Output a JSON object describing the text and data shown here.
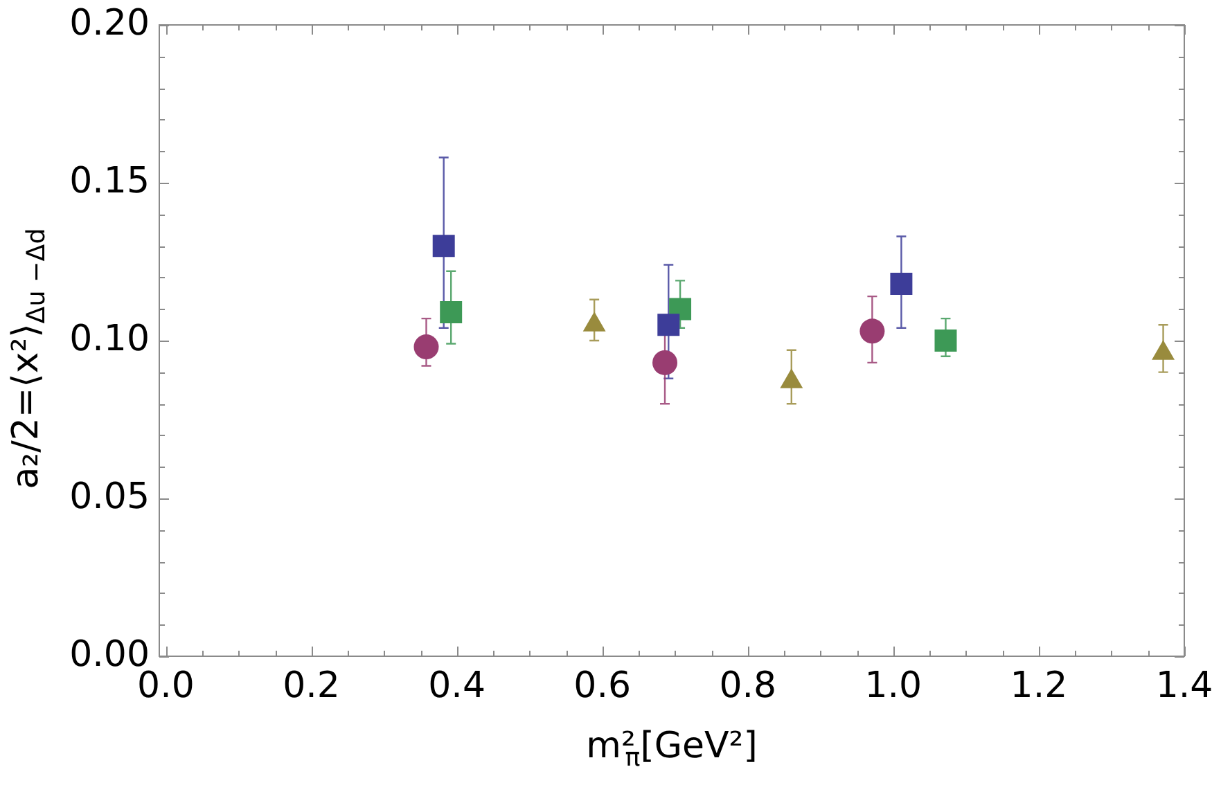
{
  "chart_data": {
    "type": "scatter",
    "xlabel": "m²$_{π}$[GeV²]",
    "ylabel": "a₂/2=⟨x²⟩$_{Δu −Δd}$",
    "xlim": [
      -0.009,
      1.4
    ],
    "ylim": [
      0,
      0.2
    ],
    "xticks": [
      {
        "value": 0,
        "label": "0.0"
      },
      {
        "value": 0.05,
        "label": null
      },
      {
        "value": 0.1,
        "label": null
      },
      {
        "value": 0.15,
        "label": null
      },
      0.2,
      {
        "value": 0.25,
        "label": null
      },
      {
        "value": 0.3,
        "label": null
      },
      {
        "value": 0.35,
        "label": null
      },
      0.4,
      {
        "value": 0.45,
        "label": null
      },
      {
        "value": 0.5,
        "label": null
      },
      {
        "value": 0.55,
        "label": null
      },
      0.6,
      {
        "value": 0.65,
        "label": null
      },
      {
        "value": 0.7,
        "label": null
      },
      {
        "value": 0.75,
        "label": null
      },
      0.8,
      {
        "value": 0.85,
        "label": null
      },
      {
        "value": 0.9,
        "label": null
      },
      {
        "value": 0.95,
        "label": null
      },
      {
        "value": 1,
        "label": "1.0"
      },
      {
        "value": 1.05,
        "label": null
      },
      {
        "value": 1.1,
        "label": null
      },
      {
        "value": 1.15,
        "label": null
      },
      1.2,
      {
        "value": 1.25,
        "label": null
      },
      {
        "value": 1.3,
        "label": null
      },
      {
        "value": 1.35,
        "label": null
      },
      1.4
    ],
    "yticks": [
      {
        "value": 0,
        "label": "0.00"
      },
      {
        "value": 0.01,
        "label": null
      },
      {
        "value": 0.02,
        "label": null
      },
      {
        "value": 0.03,
        "label": null
      },
      {
        "value": 0.04,
        "label": null
      },
      0.05,
      {
        "value": 0.06,
        "label": null
      },
      {
        "value": 0.07,
        "label": null
      },
      {
        "value": 0.08,
        "label": null
      },
      {
        "value": 0.09,
        "label": null
      },
      {
        "value": 0.1,
        "label": "0.10"
      },
      {
        "value": 0.11,
        "label": null
      },
      {
        "value": 0.12,
        "label": null
      },
      {
        "value": 0.13,
        "label": null
      },
      {
        "value": 0.14,
        "label": null
      },
      0.15,
      {
        "value": 0.16,
        "label": null
      },
      {
        "value": 0.17,
        "label": null
      },
      {
        "value": 0.18,
        "label": null
      },
      {
        "value": 0.19,
        "label": null
      },
      {
        "value": 0.2,
        "label": "0.20"
      }
    ],
    "series": [
      {
        "color": "#3d3d99",
        "marker": "square",
        "x": [
          0.382,
          0.691,
          1.011
        ],
        "values": [
          0.13,
          0.105,
          0.118
        ],
        "errors": [
          [
            0.104,
            0.158
          ],
          [
            0.088,
            0.124
          ],
          [
            0.104,
            0.133
          ]
        ]
      },
      {
        "color": "#993d71",
        "marker": "circle",
        "x": [
          0.358,
          0.686,
          0.971
        ],
        "values": [
          0.098,
          0.093,
          0.103
        ],
        "errors": [
          [
            0.092,
            0.107
          ],
          [
            0.08,
            0.108
          ],
          [
            0.093,
            0.114
          ]
        ]
      },
      {
        "color": "#998b3d",
        "marker": "triangle",
        "x": [
          0.589,
          0.86,
          1.371
        ],
        "values": [
          0.105,
          0.087,
          0.096
        ],
        "errors": [
          [
            0.1,
            0.113
          ],
          [
            0.08,
            0.097
          ],
          [
            0.09,
            0.105
          ]
        ]
      },
      {
        "color": "#3d9956",
        "marker": "square",
        "x": [
          0.392,
          0.707,
          1.072
        ],
        "values": [
          0.109,
          0.11,
          0.1
        ],
        "errors": [
          [
            0.099,
            0.122
          ],
          [
            0.104,
            0.119
          ],
          [
            0.095,
            0.107
          ]
        ]
      }
    ]
  }
}
